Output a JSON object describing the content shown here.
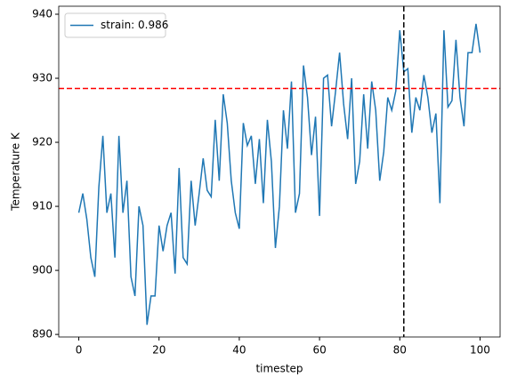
{
  "chart_data": {
    "type": "line",
    "xlabel": "timestep",
    "ylabel": "Temperature K",
    "x": [
      0,
      1,
      2,
      3,
      4,
      5,
      6,
      7,
      8,
      9,
      10,
      11,
      12,
      13,
      14,
      15,
      16,
      17,
      18,
      19,
      20,
      21,
      22,
      23,
      24,
      25,
      26,
      27,
      28,
      29,
      30,
      31,
      32,
      33,
      34,
      35,
      36,
      37,
      38,
      39,
      40,
      41,
      42,
      43,
      44,
      45,
      46,
      47,
      48,
      49,
      50,
      51,
      52,
      53,
      54,
      55,
      56,
      57,
      58,
      59,
      60,
      61,
      62,
      63,
      64,
      65,
      66,
      67,
      68,
      69,
      70,
      71,
      72,
      73,
      74,
      75,
      76,
      77,
      78,
      79,
      80,
      81,
      82,
      83,
      84,
      85,
      86,
      87,
      88,
      89,
      90,
      91,
      92,
      93,
      94,
      95,
      96,
      97,
      98,
      99,
      100
    ],
    "series": [
      {
        "name": "strain: 0.986",
        "color": "#1f77b4",
        "values": [
          909,
          912,
          908,
          902,
          899,
          913,
          921,
          909,
          912,
          902,
          921,
          909,
          914,
          899,
          896,
          910,
          907,
          891.5,
          896,
          896,
          907,
          903,
          907,
          909,
          899.5,
          916,
          902,
          901,
          914,
          907,
          912,
          917.5,
          912.5,
          911.5,
          923.5,
          914,
          927.5,
          923,
          914,
          909,
          906.5,
          923,
          919.5,
          921,
          913.5,
          920.5,
          910.5,
          923.5,
          917,
          903.5,
          910,
          925,
          919,
          929.5,
          909,
          912,
          932,
          927,
          918,
          924,
          908.5,
          930,
          930.5,
          922.5,
          928,
          934,
          926,
          920.5,
          930,
          913.5,
          917,
          927.5,
          919,
          929.5,
          925,
          914,
          918.5,
          927,
          925,
          928,
          937.5,
          931,
          931.5,
          921.5,
          927,
          925,
          930.5,
          927,
          921.5,
          924.5,
          910.5,
          937.5,
          925.5,
          926.5,
          936,
          927,
          922.5,
          934,
          934,
          938.5,
          934
        ]
      }
    ],
    "hline": {
      "y": 928.4,
      "color": "#ff0000"
    },
    "vline": {
      "x": 81,
      "color": "#000000"
    },
    "xlim": [
      -5,
      105
    ],
    "ylim": [
      889.6,
      941.25
    ],
    "xticks": [
      0,
      20,
      40,
      60,
      80,
      100
    ],
    "yticks": [
      890,
      900,
      910,
      920,
      930,
      940
    ],
    "legend": "upper left"
  }
}
